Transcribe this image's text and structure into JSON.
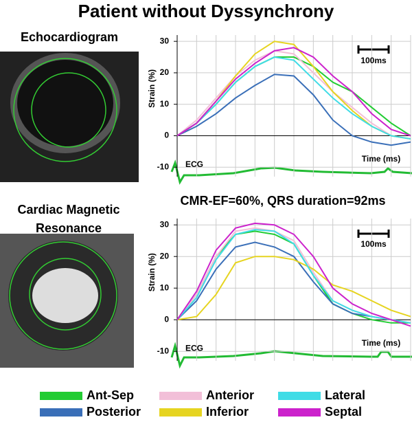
{
  "title": "Patient without Dyssynchrony",
  "images": [
    {
      "label": "Echocardiogram"
    },
    {
      "label": "Cardiac Magnetic Resonance"
    }
  ],
  "chart_data": [
    {
      "type": "line",
      "y_label": "Strain (%)",
      "x_label": "Time (ms)",
      "ecg_label": "ECG",
      "scale_label": "100ms",
      "categories": [
        null,
        null,
        null,
        null,
        null,
        null,
        null,
        null,
        null,
        null,
        null,
        null,
        null
      ],
      "ylim": [
        -13,
        32
      ],
      "yticks": [
        -10,
        0,
        10,
        20,
        30
      ],
      "grid": true,
      "series": [
        {
          "name": "Ant-Sep",
          "color": "#22cc33",
          "values": [
            0,
            4,
            10,
            17,
            22,
            25,
            25,
            22,
            17,
            14,
            9,
            4,
            0
          ]
        },
        {
          "name": "Posterior",
          "color": "#3a6fb8",
          "values": [
            0,
            3,
            7,
            12,
            16,
            19.5,
            19,
            13,
            5,
            0,
            -2,
            -3,
            -2
          ]
        },
        {
          "name": "Anterior",
          "color": "#f2bfd8",
          "values": [
            0,
            5,
            12,
            19,
            24,
            27,
            26,
            20,
            14,
            9,
            4,
            0,
            -1
          ]
        },
        {
          "name": "Inferior",
          "color": "#e6d420",
          "values": [
            0,
            4,
            11,
            19,
            26,
            30,
            29,
            22,
            14,
            8,
            3,
            0,
            -1
          ]
        },
        {
          "name": "Lateral",
          "color": "#40dce6",
          "values": [
            0,
            4,
            10,
            17,
            22,
            25,
            24,
            18,
            12,
            7,
            3,
            0,
            -1
          ]
        },
        {
          "name": "Septal",
          "color": "#cc22cc",
          "values": [
            0,
            4,
            11,
            18,
            23,
            27,
            28,
            25,
            19,
            14,
            7,
            2,
            0
          ]
        }
      ]
    },
    {
      "type": "line",
      "title": "CMR-EF=60%, QRS duration=92ms",
      "y_label": "Strain (%)",
      "x_label": "Time (ms)",
      "ecg_label": "ECG",
      "scale_label": "100ms",
      "categories": [
        null,
        null,
        null,
        null,
        null,
        null,
        null,
        null,
        null,
        null,
        null,
        null,
        null
      ],
      "ylim": [
        -13,
        32
      ],
      "yticks": [
        -10,
        0,
        10,
        20,
        30
      ],
      "grid": true,
      "series": [
        {
          "name": "Ant-Sep",
          "color": "#22cc33",
          "values": [
            0,
            8,
            20,
            27,
            28,
            27,
            24,
            14,
            5,
            2,
            0,
            -1,
            -1
          ]
        },
        {
          "name": "Posterior",
          "color": "#3a6fb8",
          "values": [
            0,
            6,
            16,
            23,
            24.5,
            23,
            20,
            12,
            5,
            2,
            1,
            0,
            -1
          ]
        },
        {
          "name": "Anterior",
          "color": "#f2bfd8",
          "values": [
            0,
            8,
            20,
            28,
            29,
            28,
            25,
            15,
            6,
            3,
            1,
            0,
            -1
          ]
        },
        {
          "name": "Inferior",
          "color": "#e6d420",
          "values": [
            0,
            1,
            8,
            18,
            20,
            20,
            19,
            16,
            11,
            9,
            6,
            3,
            1
          ]
        },
        {
          "name": "Lateral",
          "color": "#40dce6",
          "values": [
            0,
            7,
            19,
            27,
            28.5,
            28,
            24,
            14,
            6,
            3,
            1,
            0,
            -1
          ]
        },
        {
          "name": "Septal",
          "color": "#cc22cc",
          "values": [
            0,
            9,
            22,
            29,
            30.5,
            30,
            27,
            20,
            10,
            5,
            2,
            0,
            -2
          ]
        }
      ]
    }
  ]
}
